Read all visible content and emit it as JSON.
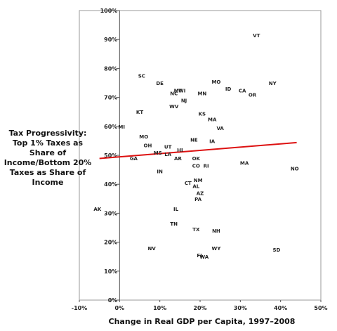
{
  "chart_data": {
    "type": "scatter",
    "title": "",
    "xlabel": "Change in Real GDP per Capita, 1997–2008",
    "ylabel": "Tax Progressivity: Top 1% Taxes as Share of Income/Bottom 20% Taxes as Share of Income",
    "xlim": [
      -10,
      50
    ],
    "ylim": [
      0,
      100
    ],
    "x_ticks": [
      "-10%",
      "0%",
      "10%",
      "20%",
      "30%",
      "40%",
      "50%"
    ],
    "y_ticks": [
      "0%",
      "10%",
      "20%",
      "30%",
      "40%",
      "50%",
      "60%",
      "70%",
      "80%",
      "90%",
      "100%"
    ],
    "grid": false,
    "trendline": {
      "color": "#dd1111",
      "x": [
        -5,
        44
      ],
      "y": [
        48.9,
        54.4
      ]
    },
    "points": [
      {
        "label": "VT",
        "x": 34,
        "y": 91.5
      },
      {
        "label": "SC",
        "x": 5.5,
        "y": 77.5
      },
      {
        "label": "DE",
        "x": 10,
        "y": 75
      },
      {
        "label": "MO",
        "x": 24,
        "y": 75.5
      },
      {
        "label": "NY",
        "x": 38,
        "y": 75
      },
      {
        "label": "ID",
        "x": 27,
        "y": 73
      },
      {
        "label": "CA",
        "x": 30.5,
        "y": 72.5
      },
      {
        "label": "NC",
        "x": 13.5,
        "y": 71.5
      },
      {
        "label": "MT",
        "x": 14.5,
        "y": 72.5
      },
      {
        "label": "WI",
        "x": 15.5,
        "y": 72.5
      },
      {
        "label": "MN",
        "x": 20.5,
        "y": 71.5
      },
      {
        "label": "OR",
        "x": 33,
        "y": 71
      },
      {
        "label": "NJ",
        "x": 16,
        "y": 69
      },
      {
        "label": "WV",
        "x": 13.5,
        "y": 67
      },
      {
        "label": "KT",
        "x": 5,
        "y": 65
      },
      {
        "label": "KS",
        "x": 20.5,
        "y": 64.5
      },
      {
        "label": "MA",
        "x": 23,
        "y": 62.5
      },
      {
        "label": "MI",
        "x": 0.5,
        "y": 60
      },
      {
        "label": "VA",
        "x": 25,
        "y": 59.5
      },
      {
        "label": "MO",
        "x": 6,
        "y": 56.5
      },
      {
        "label": "NE",
        "x": 18.5,
        "y": 55.5
      },
      {
        "label": "IA",
        "x": 23,
        "y": 55
      },
      {
        "label": "OH",
        "x": 7,
        "y": 53.5
      },
      {
        "label": "UT",
        "x": 12,
        "y": 53
      },
      {
        "label": "HI",
        "x": 15,
        "y": 52
      },
      {
        "label": "MS",
        "x": 9.5,
        "y": 51
      },
      {
        "label": "LA",
        "x": 12,
        "y": 50.5
      },
      {
        "label": "AR",
        "x": 14.5,
        "y": 49
      },
      {
        "label": "OK",
        "x": 19,
        "y": 49
      },
      {
        "label": "GA",
        "x": 3.5,
        "y": 49
      },
      {
        "label": "CO",
        "x": 19,
        "y": 46.5
      },
      {
        "label": "RI",
        "x": 21.5,
        "y": 46.5
      },
      {
        "label": "MA",
        "x": 31,
        "y": 47.5
      },
      {
        "label": "NO",
        "x": 43.5,
        "y": 45.5
      },
      {
        "label": "IN",
        "x": 10,
        "y": 44.5
      },
      {
        "label": "NM",
        "x": 19.5,
        "y": 41.5
      },
      {
        "label": "CT",
        "x": 17,
        "y": 40.5
      },
      {
        "label": "AL",
        "x": 19,
        "y": 39.5
      },
      {
        "label": "AZ",
        "x": 20,
        "y": 37
      },
      {
        "label": "PA",
        "x": 19.5,
        "y": 35
      },
      {
        "label": "AK",
        "x": -5.5,
        "y": 31.5
      },
      {
        "label": "IL",
        "x": 14,
        "y": 31.5
      },
      {
        "label": "TN",
        "x": 13.5,
        "y": 26.5
      },
      {
        "label": "TX",
        "x": 19,
        "y": 24.5
      },
      {
        "label": "NH",
        "x": 24,
        "y": 24
      },
      {
        "label": "NV",
        "x": 8,
        "y": 18
      },
      {
        "label": "WY",
        "x": 24,
        "y": 18
      },
      {
        "label": "SD",
        "x": 39,
        "y": 17.5
      },
      {
        "label": "FL",
        "x": 20,
        "y": 15.5
      },
      {
        "label": "WA",
        "x": 21,
        "y": 15
      }
    ]
  }
}
